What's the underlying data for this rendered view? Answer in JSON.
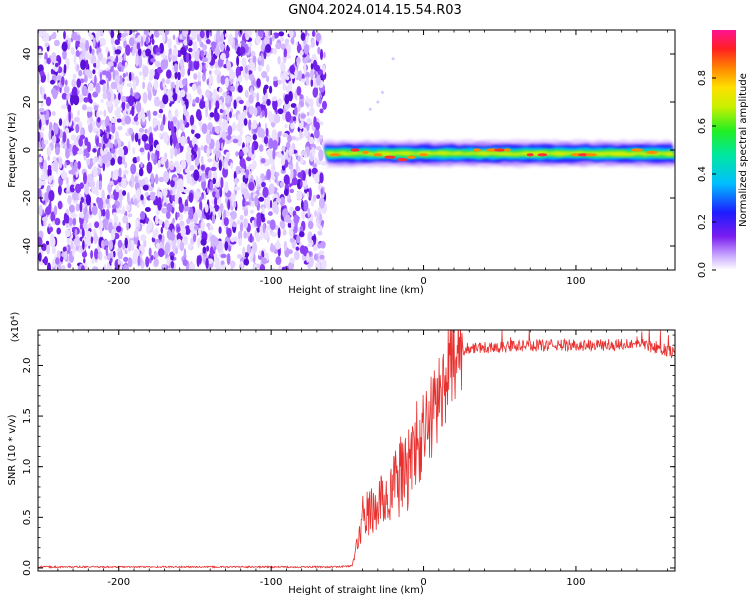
{
  "title": "GN04.2024.014.15.54.R03",
  "colors": {
    "snr_line": "#e8312f",
    "spectrogram_noise": "#8a2be2"
  },
  "chart_data": [
    {
      "type": "heatmap",
      "xlabel": "Height of straight line (km)",
      "ylabel": "Frequency (Hz)",
      "xlim": [
        -253,
        165
      ],
      "ylim": [
        -50,
        50
      ],
      "x_ticks": [
        -200,
        -100,
        0,
        100
      ],
      "y_ticks": [
        -40,
        -20,
        0,
        20,
        40
      ],
      "colorbar": {
        "label": "Normalized spectral amplitude",
        "range": [
          0.0,
          1.0
        ],
        "ticks": [
          0.0,
          0.2,
          0.4,
          0.6,
          0.8
        ],
        "colormap": "rainbow (white-purple-blue-cyan-green-yellow-orange-red-magenta)"
      },
      "regions": [
        {
          "description": "broadband noise",
          "x_range": [
            -253,
            -65
          ],
          "freq_range": [
            -50,
            50
          ],
          "amplitude": 0.1
        },
        {
          "description": "narrow signal line",
          "x_range": [
            -65,
            165
          ],
          "freq_center": -1.5,
          "freq_halfwidth": 3,
          "amplitude_peak": 0.9
        }
      ]
    },
    {
      "type": "line",
      "xlabel": "Height of straight line (km)",
      "ylabel": "SNR (10 * v/v)",
      "y_multiplier": "(x10⁴)",
      "xlim": [
        -253,
        165
      ],
      "ylim": [
        -0.03,
        2.35
      ],
      "x_ticks": [
        -200,
        -100,
        0,
        100
      ],
      "y_ticks": [
        "0.0",
        "0.5",
        "1.0",
        "1.5",
        "2.0"
      ],
      "series": [
        {
          "x": [
            -253,
            -200,
            -150,
            -100,
            -60,
            -47,
            -44,
            -40,
            -35,
            -30,
            -25,
            -20,
            -15,
            -10,
            -5,
            0,
            5,
            10,
            15,
            20,
            25,
            30,
            35,
            40,
            50,
            60,
            80,
            100,
            120,
            140,
            160,
            165
          ],
          "y": [
            0.01,
            0.01,
            0.01,
            0.01,
            0.01,
            0.02,
            0.2,
            0.5,
            0.55,
            0.6,
            0.7,
            0.8,
            0.9,
            1.0,
            1.2,
            1.3,
            1.5,
            1.7,
            1.9,
            2.05,
            2.15,
            2.18,
            2.18,
            2.18,
            2.18,
            2.19,
            2.2,
            2.2,
            2.2,
            2.22,
            2.15,
            2.12
          ]
        }
      ]
    }
  ]
}
